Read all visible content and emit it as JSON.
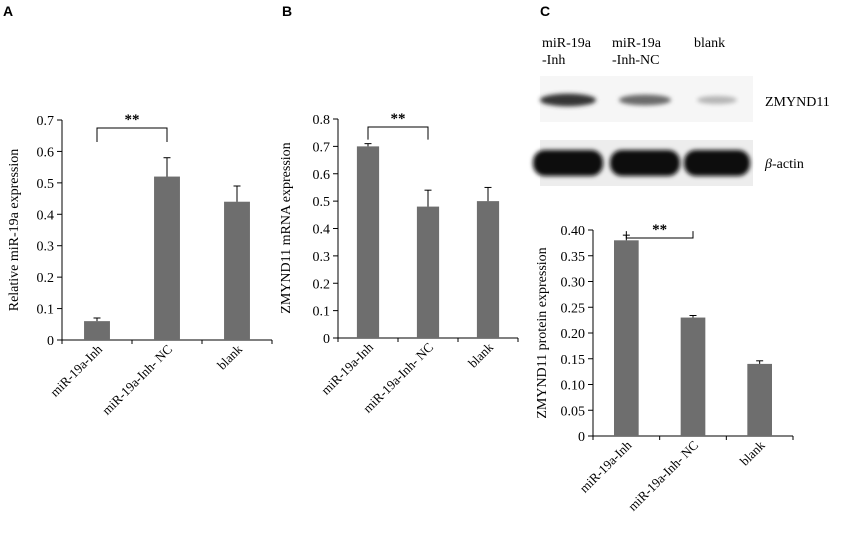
{
  "panels": {
    "A": "A",
    "B": "B",
    "C": "C"
  },
  "blot": {
    "lanes": [
      "miR-19a\n-Inh",
      "miR-19a\n-Inh-NC",
      "blank"
    ],
    "proteins": [
      "ZMYND11",
      "β-actin"
    ],
    "band_intensity": {
      "ZMYND11": [
        0.85,
        0.6,
        0.25
      ],
      "β-actin": [
        1.0,
        1.0,
        1.0
      ]
    }
  },
  "colors": {
    "bar": "#6e6e6e",
    "axis": "#000000"
  },
  "chart_data": [
    {
      "panel": "A",
      "type": "bar",
      "title": "",
      "xlabel": "",
      "ylabel": "Relative miR-19a expression",
      "categories": [
        "miR-19a-Inh",
        "miR-19a-Inh- NC",
        "blank"
      ],
      "values": [
        0.06,
        0.52,
        0.44
      ],
      "errors": [
        0.01,
        0.06,
        0.05
      ],
      "ylim": [
        0,
        0.7
      ],
      "yticks": [
        "0",
        "0.1",
        "0.2",
        "0.3",
        "0.4",
        "0.5",
        "0.6",
        "0.7"
      ],
      "tick_values": [
        0,
        0.1,
        0.2,
        0.3,
        0.4,
        0.5,
        0.6,
        0.7
      ],
      "significance": {
        "from": 0,
        "to": 1,
        "label": "**"
      }
    },
    {
      "panel": "B",
      "type": "bar",
      "title": "",
      "xlabel": "",
      "ylabel": "ZMYND11 mRNA expression",
      "categories": [
        "miR-19a-Inh",
        "miR-19a-Inh- NC",
        "blank"
      ],
      "values": [
        0.7,
        0.48,
        0.5
      ],
      "errors": [
        0.01,
        0.06,
        0.05
      ],
      "ylim": [
        0,
        0.8
      ],
      "yticks": [
        "0",
        "0.1",
        "0.2",
        "0.3",
        "0.4",
        "0.5",
        "0.6",
        "0.7",
        "0.8"
      ],
      "tick_values": [
        0,
        0.1,
        0.2,
        0.3,
        0.4,
        0.5,
        0.6,
        0.7,
        0.8
      ],
      "significance": {
        "from": 0,
        "to": 1,
        "label": "**"
      }
    },
    {
      "panel": "C",
      "type": "bar",
      "title": "",
      "xlabel": "",
      "ylabel": "ZMYND11 protein expression",
      "categories": [
        "miR-19a-Inh",
        "miR-19a-Inh- NC",
        "blank"
      ],
      "values": [
        0.38,
        0.23,
        0.14
      ],
      "errors": [
        0.01,
        0.004,
        0.006
      ],
      "ylim": [
        0,
        0.4
      ],
      "yticks": [
        "0",
        "0.05",
        "0.10",
        "0.15",
        "0.20",
        "0.25",
        "0.30",
        "0.35",
        "0.40"
      ],
      "tick_values": [
        0,
        0.05,
        0.1,
        0.15,
        0.2,
        0.25,
        0.3,
        0.35,
        0.4
      ],
      "significance": {
        "from": 0,
        "to": 1,
        "label": "**"
      }
    }
  ]
}
